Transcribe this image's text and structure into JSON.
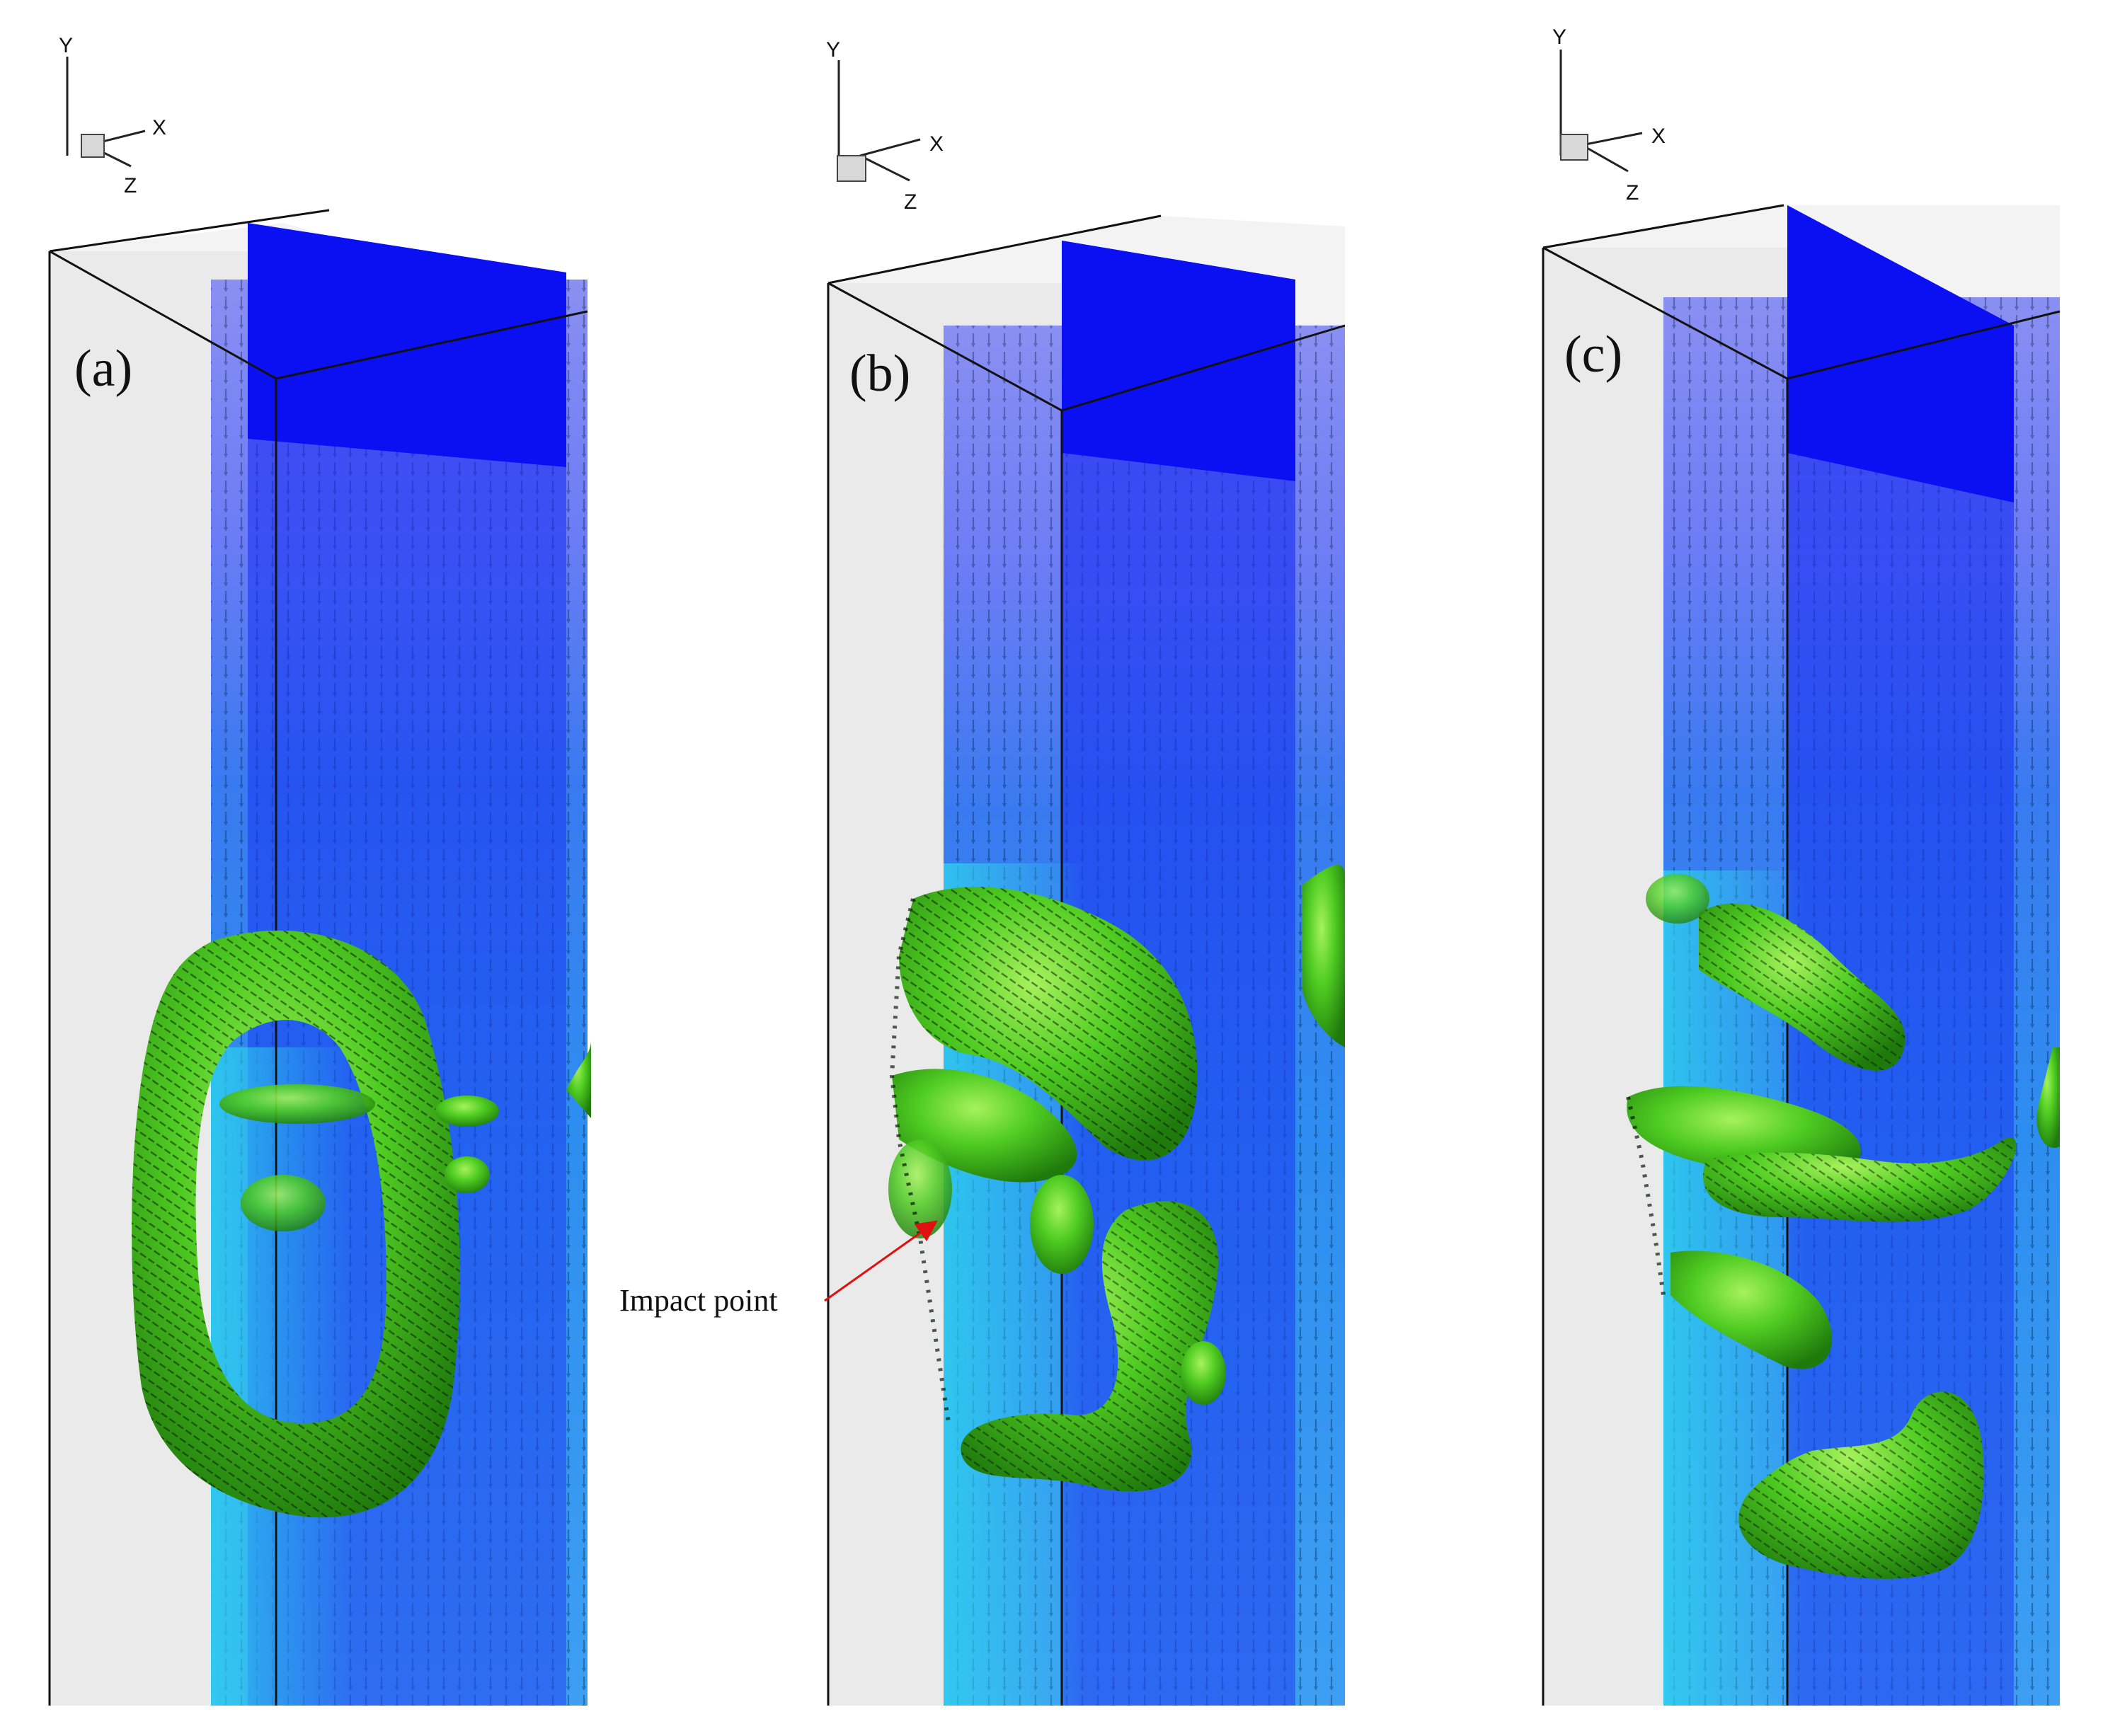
{
  "panels": [
    {
      "id": "a",
      "label": "(a)"
    },
    {
      "id": "b",
      "label": "(b)"
    },
    {
      "id": "c",
      "label": "(c)"
    }
  ],
  "axis_triad": {
    "y": "Y",
    "x": "X",
    "z": "Z"
  },
  "annotation": {
    "text": "Impact point"
  },
  "colors": {
    "domain_box": "#ececec",
    "plane_dark": "#0a12f0",
    "plane_light": "#8a8cf0",
    "plane_cyan": "#38d8ee",
    "vortex": "#3cc21a",
    "vortex_highlight": "#9ef05a",
    "arrow_annotation": "#e01010"
  }
}
